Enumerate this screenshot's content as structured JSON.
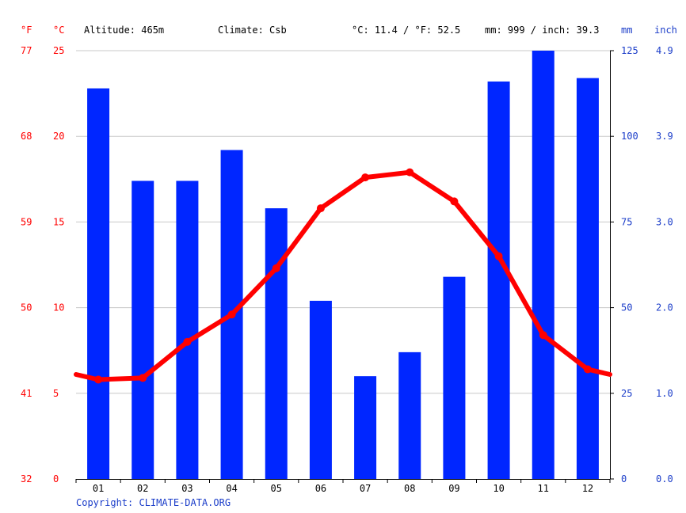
{
  "header": {
    "f_unit": "°F",
    "c_unit": "°C",
    "altitude": "Altitude: 465m",
    "climate": "Climate: Csb",
    "temp_avg": "°C: 11.4 / °F: 52.5",
    "precip_total": "mm: 999 / inch: 39.3",
    "mm_unit": "mm",
    "inch_unit": "inch"
  },
  "footer": {
    "copyright": "Copyright: CLIMATE-DATA.ORG"
  },
  "colors": {
    "precip": "#0026ff",
    "temp": "#ff0000",
    "f_axis": "#ff0000",
    "c_axis": "#ff0000",
    "precip_axis": "#1b3dc9",
    "grid": "#c8c8c8",
    "text": "#000000"
  },
  "chart_data": {
    "type": "bar+line",
    "categories": [
      "01",
      "02",
      "03",
      "04",
      "05",
      "06",
      "07",
      "08",
      "09",
      "10",
      "11",
      "12"
    ],
    "series": [
      {
        "kind": "bar",
        "axis": "precip",
        "unit": "mm",
        "values": [
          114,
          87,
          87,
          96,
          79,
          52,
          30,
          37,
          59,
          116,
          125,
          117
        ]
      },
      {
        "kind": "line",
        "axis": "temp",
        "unit": "°C",
        "values": [
          5.8,
          5.9,
          8.0,
          9.6,
          12.3,
          15.8,
          17.6,
          17.9,
          16.2,
          13.0,
          8.4,
          6.4
        ]
      }
    ],
    "temp_axis": {
      "ylim": [
        0,
        25
      ],
      "ticks_c": [
        "0",
        "5",
        "10",
        "15",
        "20",
        "25"
      ],
      "ticks_f": [
        "32",
        "41",
        "50",
        "59",
        "68",
        "77"
      ]
    },
    "precip_axis": {
      "ylim": [
        0,
        125
      ],
      "ticks_mm": [
        "0",
        "25",
        "50",
        "75",
        "100",
        "125"
      ],
      "ticks_inch": [
        "0.0",
        "1.0",
        "2.0",
        "3.0",
        "3.9",
        "4.9"
      ]
    },
    "line_edges": {
      "start": 6.1,
      "end": 6.1
    },
    "grid": true
  }
}
